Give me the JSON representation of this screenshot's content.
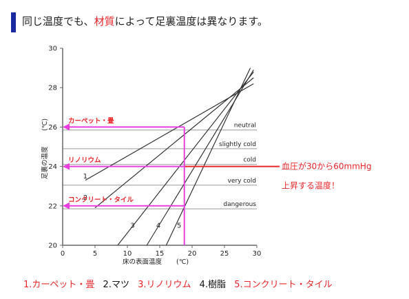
{
  "page_title": {
    "before": "同じ温度でも、",
    "highlight": "材質",
    "after": "によって足裏温度は異なります。",
    "highlight_color": "#e8262a",
    "bar_color": "#1a2aa0"
  },
  "legend_items": [
    {
      "text": "1.カーペット・畳",
      "color": "#e8262a"
    },
    {
      "text": "2.マツ",
      "color": "#111111"
    },
    {
      "text": "3.リノリウム",
      "color": "#e8262a"
    },
    {
      "text": "4.樹脂",
      "color": "#111111"
    },
    {
      "text": "5.コンクリート・タイル",
      "color": "#e8262a"
    }
  ],
  "chart_data": {
    "type": "line",
    "xlabel": "床の表面温度",
    "xlabel_unit": "(℃)",
    "ylabel": "足裏の温度",
    "ylabel_unit": "(℃)",
    "xlim": [
      0,
      30
    ],
    "ylim": [
      20,
      30
    ],
    "x_ticks": [
      0,
      5,
      10,
      15,
      20,
      25,
      30
    ],
    "y_ticks": [
      20,
      22,
      24,
      26,
      28,
      30
    ],
    "series": [
      {
        "name": "1",
        "x": [
          3.5,
          29.5
        ],
        "y": [
          23.3,
          28.2
        ]
      },
      {
        "name": "2",
        "x": [
          5.0,
          29.5
        ],
        "y": [
          21.9,
          28.5
        ]
      },
      {
        "name": "3",
        "x": [
          8.5,
          29.5
        ],
        "y": [
          20.0,
          28.8
        ]
      },
      {
        "name": "4",
        "x": [
          13.0,
          29.5
        ],
        "y": [
          20.0,
          28.9
        ]
      },
      {
        "name": "5",
        "x": [
          16.0,
          29.0
        ],
        "y": [
          20.0,
          29.0
        ]
      }
    ],
    "series_labels": [
      {
        "text": "1",
        "x": 3.5,
        "y": 23.4
      },
      {
        "text": "2",
        "x": 3.5,
        "y": 22.3
      },
      {
        "text": "3",
        "x": 10.8,
        "y": 20.9
      },
      {
        "text": "4",
        "x": 14.8,
        "y": 20.9
      },
      {
        "text": "5",
        "x": 18.0,
        "y": 20.9
      }
    ],
    "reference_lines": [
      {
        "label": "neutral",
        "y": 25.85
      },
      {
        "label": "slightly cold",
        "y": 24.9
      },
      {
        "label": "cold",
        "y": 24.1
      },
      {
        "label": "very cold",
        "y": 23.05
      },
      {
        "label": "dangerous",
        "y": 21.85
      }
    ],
    "highlights": [
      {
        "label": "カーペット・畳",
        "y": 26.0,
        "x_floor": 18.8
      },
      {
        "label": "リノリウム",
        "y": 24.0,
        "x_floor": 18.8
      },
      {
        "label": "コンクリート・タイル",
        "y": 22.0,
        "x_floor": 18.8
      }
    ],
    "red_line": {
      "y": 24.0,
      "x_start": 18.8
    },
    "annotation": {
      "line1": "血圧が30から60mmHg",
      "line2": "上昇する温度！"
    },
    "colors": {
      "magenta": "#e83ee0",
      "red": "#e8262a",
      "axis": "#666666",
      "line": "#333333",
      "ref": "#999999"
    }
  }
}
